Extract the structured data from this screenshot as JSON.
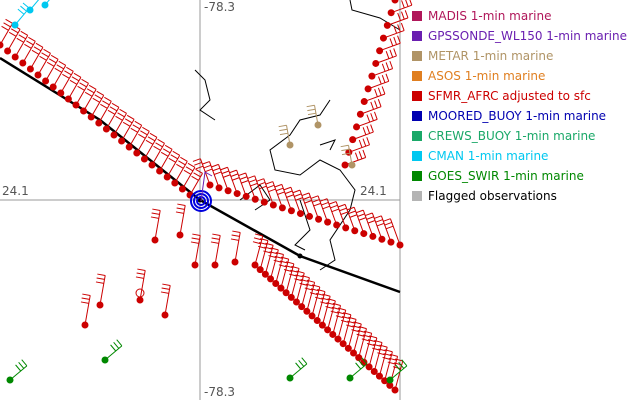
{
  "axes": {
    "lon_top": "-78.3",
    "lon_bottom": "-78.3",
    "lat_left": "24.1",
    "lat_right": "24.1"
  },
  "legend": [
    {
      "label": "MADIS 1-min marine",
      "color": "#b0175a"
    },
    {
      "label": "GPSSONDE_WL150 1-min marine",
      "color": "#6a1fb0"
    },
    {
      "label": "METAR 1-min marine",
      "color": "#b09466"
    },
    {
      "label": "ASOS 1-min marine",
      "color": "#e07f20"
    },
    {
      "label": "SFMR_AFRC adjusted to sfc",
      "color": "#cc0000"
    },
    {
      "label": "MOORED_BUOY 1-min marine",
      "color": "#0000b0"
    },
    {
      "label": "CREWS_BUOY 1-min marine",
      "color": "#1aa868"
    },
    {
      "label": "CMAN 1-min marine",
      "color": "#00c8f0"
    },
    {
      "label": "GOES_SWIR 1-min marine",
      "color": "#008800"
    },
    {
      "label": "Flagged observations",
      "color": "#b4b4b4",
      "text_color": "#000000"
    }
  ]
}
